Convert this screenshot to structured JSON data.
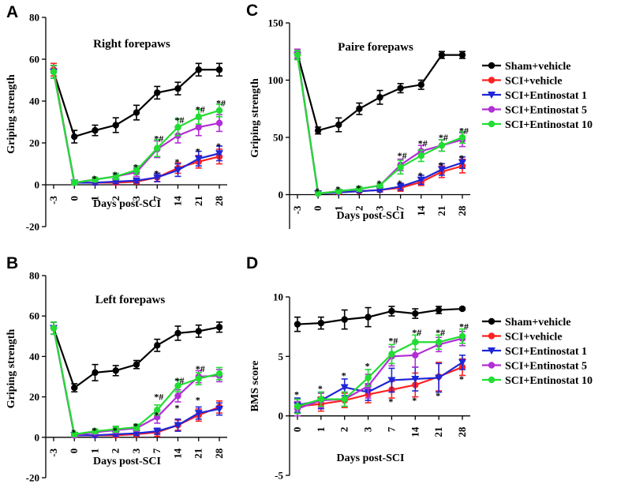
{
  "figure": {
    "series_meta": [
      {
        "name": "Sham+vehicle",
        "color": "#000000",
        "marker": "circle"
      },
      {
        "name": "SCI+vehicle",
        "color": "#ff2020",
        "marker": "circle"
      },
      {
        "name": "SCI+Entinostat 1",
        "color": "#1f26d6",
        "marker": "triangle-down"
      },
      {
        "name": "SCI+Entinostat 5",
        "color": "#b22ed6",
        "marker": "circle"
      },
      {
        "name": "SCI+Entinostat 10",
        "color": "#22dd33",
        "marker": "circle"
      }
    ]
  },
  "chart_data": [
    {
      "panel": "A",
      "type": "line",
      "title": "Right forepaws",
      "xlabel": "Days post-SCI",
      "ylabel": "Griping strength",
      "x": [
        "-3",
        "0",
        "1",
        "2",
        "3",
        "7",
        "14",
        "21",
        "28"
      ],
      "ylim": [
        -20,
        80
      ],
      "yticks": [
        "-20",
        "0",
        "20",
        "40",
        "60",
        "80"
      ],
      "series": [
        {
          "name": "Sham+vehicle",
          "values": [
            54,
            23,
            26,
            28.5,
            34.5,
            44,
            46,
            55,
            55
          ],
          "err": [
            3,
            3,
            2.5,
            3.5,
            3.5,
            3,
            3,
            3,
            3
          ]
        },
        {
          "name": "SCI+vehicle",
          "values": [
            55,
            1,
            1,
            1,
            1.5,
            3.5,
            8,
            11,
            13.5
          ],
          "err": [
            3,
            1,
            1,
            1,
            1,
            2,
            2.5,
            3,
            3.5
          ]
        },
        {
          "name": "SCI+Entinostat 1",
          "values": [
            54,
            1,
            1,
            1.5,
            2,
            3.5,
            7,
            12.5,
            15
          ],
          "err": [
            3,
            1,
            1,
            1,
            1,
            2,
            3,
            3.5,
            3.5
          ]
        },
        {
          "name": "SCI+Entinostat 5",
          "values": [
            54,
            1,
            2.5,
            4,
            6,
            17,
            23.5,
            27.5,
            29.5
          ],
          "err": [
            3,
            1,
            1,
            1.5,
            2,
            4,
            3.5,
            4,
            4
          ]
        },
        {
          "name": "SCI+Entinostat 10",
          "values": [
            54,
            1,
            2.5,
            4,
            7,
            17.5,
            27.5,
            32.5,
            35.5
          ],
          "err": [
            3,
            1,
            1,
            1.5,
            2,
            4,
            4,
            3.5,
            3
          ]
        }
      ],
      "annotations": [
        {
          "x": "1",
          "y": 3,
          "text": "*"
        },
        {
          "x": "2",
          "y": 5,
          "text": "*"
        },
        {
          "x": "3",
          "y": 8.5,
          "text": "*"
        },
        {
          "x": "7",
          "y": 22,
          "text": "*#"
        },
        {
          "x": "7",
          "y": 5.5,
          "text": "*"
        },
        {
          "x": "14",
          "y": 31,
          "text": "*#"
        },
        {
          "x": "14",
          "y": 11,
          "text": "*"
        },
        {
          "x": "21",
          "y": 36,
          "text": "*#"
        },
        {
          "x": "21",
          "y": 16,
          "text": "*"
        },
        {
          "x": "28",
          "y": 39,
          "text": "*#"
        },
        {
          "x": "28",
          "y": 18.5,
          "text": "*"
        }
      ]
    },
    {
      "panel": "B",
      "type": "line",
      "title": "Left forepaws",
      "xlabel": "Days post-SCI",
      "ylabel": "Griping strength",
      "x": [
        "-3",
        "0",
        "1",
        "2",
        "3",
        "7",
        "14",
        "21",
        "28"
      ],
      "ylim": [
        -20,
        80
      ],
      "yticks": [
        "-20",
        "0",
        "20",
        "40",
        "60",
        "80"
      ],
      "series": [
        {
          "name": "Sham+vehicle",
          "values": [
            54,
            24.5,
            32,
            33,
            36,
            45.5,
            51.5,
            52.5,
            54.5
          ],
          "err": [
            3,
            2,
            4,
            2.5,
            2,
            3,
            3.5,
            3,
            2.5
          ]
        },
        {
          "name": "SCI+vehicle",
          "values": [
            54,
            1,
            1,
            1,
            1.5,
            2.5,
            6,
            11,
            15
          ],
          "err": [
            3,
            1,
            1,
            1,
            1,
            2,
            2.5,
            3,
            3
          ]
        },
        {
          "name": "SCI+Entinostat 1",
          "values": [
            54,
            1,
            1,
            1.5,
            2,
            3,
            6,
            12,
            14
          ],
          "err": [
            3,
            1,
            1,
            1,
            1,
            1.5,
            3,
            3,
            3
          ]
        },
        {
          "name": "SCI+Entinostat 5",
          "values": [
            54,
            1,
            2.5,
            3.5,
            4.5,
            10,
            20.5,
            30,
            30.5
          ],
          "err": [
            3,
            1,
            1,
            1.5,
            1.5,
            3,
            3,
            3,
            3
          ]
        },
        {
          "name": "SCI+Entinostat 10",
          "values": [
            54,
            1.5,
            3,
            4,
            5,
            13.5,
            25.5,
            29,
            31.5
          ],
          "err": [
            3,
            1,
            1,
            1.5,
            1.5,
            2.5,
            3,
            3,
            3
          ]
        }
      ],
      "annotations": [
        {
          "x": "0",
          "y": 2.5,
          "text": "*"
        },
        {
          "x": "1",
          "y": 3.5,
          "text": "*"
        },
        {
          "x": "2",
          "y": 3.5,
          "text": "*"
        },
        {
          "x": "3",
          "y": 5.5,
          "text": "*"
        },
        {
          "x": "7",
          "y": 20,
          "text": "*#"
        },
        {
          "x": "7",
          "y": 11,
          "text": "*"
        },
        {
          "x": "14",
          "y": 28,
          "text": "*#"
        },
        {
          "x": "14",
          "y": 14.5,
          "text": "*"
        },
        {
          "x": "21",
          "y": 34,
          "text": "*#"
        },
        {
          "x": "21",
          "y": 18.5,
          "text": "*"
        }
      ]
    },
    {
      "panel": "C",
      "type": "line",
      "title": "Paire forepaws",
      "xlabel": "Days post-SCI",
      "ylabel": "Griping strength",
      "x": [
        "-3",
        "0",
        "1",
        "2",
        "3",
        "7",
        "14",
        "21",
        "28"
      ],
      "ylim": [
        -30,
        150
      ],
      "yticks": [
        "0",
        "50",
        "100",
        "150"
      ],
      "series": [
        {
          "name": "Sham+vehicle",
          "values": [
            123,
            56,
            61,
            75,
            85,
            93,
            96,
            122,
            122
          ],
          "err": [
            4,
            3,
            6,
            5,
            6,
            4,
            4,
            3,
            3
          ]
        },
        {
          "name": "SCI+vehicle",
          "values": [
            122,
            1,
            2,
            3,
            4,
            6,
            11,
            20,
            25
          ],
          "err": [
            4,
            1,
            1,
            1,
            1.5,
            3,
            3,
            5,
            6
          ]
        },
        {
          "name": "SCI+Entinostat 1",
          "values": [
            122,
            1,
            2,
            3,
            4,
            7,
            13,
            22,
            28
          ],
          "err": [
            4,
            1,
            1,
            1,
            1.5,
            3,
            4,
            5,
            5
          ]
        },
        {
          "name": "SCI+Entinostat 5",
          "values": [
            123,
            1,
            3,
            5,
            8,
            26,
            38,
            43,
            48
          ],
          "err": [
            4,
            1,
            1.5,
            2,
            2,
            5,
            5,
            5,
            6
          ]
        },
        {
          "name": "SCI+Entinostat 10",
          "values": [
            122,
            1,
            3,
            5,
            8,
            24,
            34,
            43,
            50
          ],
          "err": [
            4,
            1,
            1.5,
            2,
            2,
            6,
            5,
            5,
            5
          ]
        }
      ],
      "annotations": [
        {
          "x": "0",
          "y": 3,
          "text": "*"
        },
        {
          "x": "1",
          "y": 5,
          "text": "*"
        },
        {
          "x": "2",
          "y": 6,
          "text": "*"
        },
        {
          "x": "3",
          "y": 10,
          "text": "*"
        },
        {
          "x": "7",
          "y": 34,
          "text": "*#"
        },
        {
          "x": "7",
          "y": 10,
          "text": "*"
        },
        {
          "x": "14",
          "y": 45,
          "text": "*#"
        },
        {
          "x": "14",
          "y": 17,
          "text": "*"
        },
        {
          "x": "21",
          "y": 50,
          "text": "*#"
        },
        {
          "x": "21",
          "y": 26,
          "text": "*"
        },
        {
          "x": "28",
          "y": 56,
          "text": "*#"
        },
        {
          "x": "28",
          "y": 32,
          "text": "*"
        }
      ]
    },
    {
      "panel": "D",
      "type": "line",
      "title": "",
      "xlabel": "Days post-SCI",
      "ylabel": "BMS score",
      "x": [
        "0",
        "1",
        "2",
        "3",
        "7",
        "14",
        "21",
        "28"
      ],
      "ylim": [
        -5,
        10
      ],
      "yticks": [
        "-5",
        "0",
        "5",
        "10"
      ],
      "series": [
        {
          "name": "Sham+vehicle",
          "values": [
            7.7,
            7.8,
            8.1,
            8.3,
            8.8,
            8.6,
            8.9,
            9.0
          ],
          "err": [
            0.6,
            0.5,
            0.8,
            0.8,
            0.4,
            0.4,
            0.3,
            0.1
          ]
        },
        {
          "name": "SCI+vehicle",
          "values": [
            0.8,
            1.0,
            1.3,
            1.8,
            2.2,
            2.6,
            3.3,
            4.1
          ],
          "err": [
            0.6,
            0.6,
            0.6,
            0.7,
            0.7,
            1.0,
            1.2,
            0.7
          ]
        },
        {
          "name": "SCI+Entinostat 1",
          "values": [
            0.9,
            1.3,
            2.4,
            2.0,
            3.0,
            3.1,
            3.2,
            4.5
          ],
          "err": [
            0.6,
            0.7,
            0.7,
            0.7,
            1.0,
            1.0,
            1.2,
            0.6
          ]
        },
        {
          "name": "SCI+Entinostat 5",
          "values": [
            0.6,
            1.3,
            1.4,
            2.5,
            5.0,
            5.1,
            6.0,
            6.5
          ],
          "err": [
            0.6,
            0.6,
            0.6,
            1.0,
            0.8,
            1.0,
            0.6,
            0.6
          ]
        },
        {
          "name": "SCI+Entinostat 10",
          "values": [
            0.8,
            1.4,
            1.4,
            3.2,
            5.2,
            6.2,
            6.2,
            6.7
          ],
          "err": [
            0.6,
            0.6,
            0.6,
            0.7,
            0.8,
            0.6,
            0.6,
            0.6
          ]
        }
      ],
      "annotations": [
        {
          "x": "0",
          "y": 1.8,
          "text": "*"
        },
        {
          "x": "1",
          "y": 2.3,
          "text": "*"
        },
        {
          "x": "2",
          "y": 3.4,
          "text": "*"
        },
        {
          "x": "3",
          "y": 4.2,
          "text": "*"
        },
        {
          "x": "7",
          "y": 6.3,
          "text": "*#"
        },
        {
          "x": "7",
          "y": 1.2,
          "text": "*"
        },
        {
          "x": "14",
          "y": 7.0,
          "text": "*#"
        },
        {
          "x": "14",
          "y": 1.3,
          "text": "*"
        },
        {
          "x": "21",
          "y": 7.0,
          "text": "*#"
        },
        {
          "x": "21",
          "y": 1.7,
          "text": "*"
        },
        {
          "x": "28",
          "y": 7.5,
          "text": "*#"
        },
        {
          "x": "28",
          "y": 3.1,
          "text": "*"
        }
      ]
    }
  ]
}
